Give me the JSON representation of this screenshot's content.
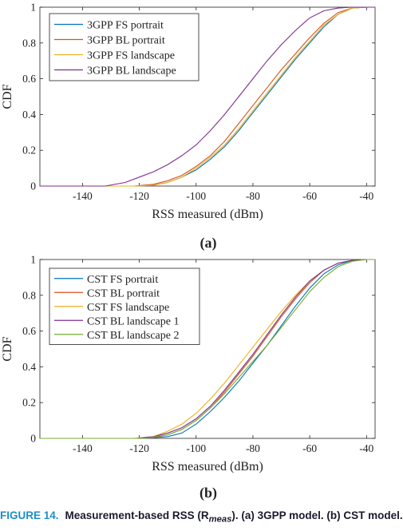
{
  "chart_data": [
    {
      "type": "line",
      "panel_label": "(a)",
      "xlabel": "RSS measured (dBm)",
      "ylabel": "CDF",
      "xlim": [
        -155,
        -37
      ],
      "ylim": [
        0,
        1
      ],
      "xticks": [
        -140,
        -120,
        -100,
        -80,
        -60,
        -40
      ],
      "xtick_labels": [
        "-140",
        "-120",
        "-100",
        "-80",
        "-60",
        "-40"
      ],
      "yticks": [
        0,
        0.2,
        0.4,
        0.6,
        0.8,
        1
      ],
      "ytick_labels": [
        "0",
        "0.2",
        "0.4",
        "0.6",
        "0.8",
        "1"
      ],
      "grid": false,
      "legend_position": "top-left",
      "series": [
        {
          "name": "3GPP FS portrait",
          "color": "#0072BD",
          "x": [
            -120,
            -115,
            -110,
            -105,
            -100,
            -95,
            -90,
            -85,
            -80,
            -75,
            -70,
            -65,
            -60,
            -55,
            -50,
            -45,
            -40
          ],
          "y": [
            0,
            0.005,
            0.02,
            0.05,
            0.09,
            0.15,
            0.22,
            0.31,
            0.41,
            0.51,
            0.61,
            0.71,
            0.8,
            0.89,
            0.96,
            0.995,
            1
          ]
        },
        {
          "name": "3GPP BL portrait",
          "color": "#D95319",
          "x": [
            -122,
            -115,
            -110,
            -105,
            -100,
            -95,
            -90,
            -85,
            -80,
            -75,
            -70,
            -65,
            -60,
            -55,
            -50,
            -45,
            -40
          ],
          "y": [
            0,
            0.01,
            0.03,
            0.06,
            0.11,
            0.17,
            0.25,
            0.35,
            0.45,
            0.55,
            0.65,
            0.74,
            0.83,
            0.91,
            0.97,
            0.995,
            1
          ]
        },
        {
          "name": "3GPP FS landscape",
          "color": "#EDB120",
          "x": [
            -120,
            -115,
            -110,
            -105,
            -100,
            -95,
            -90,
            -85,
            -80,
            -75,
            -70,
            -65,
            -60,
            -55,
            -50,
            -45,
            -40
          ],
          "y": [
            0,
            0.005,
            0.02,
            0.05,
            0.1,
            0.16,
            0.23,
            0.32,
            0.42,
            0.52,
            0.62,
            0.72,
            0.81,
            0.9,
            0.96,
            0.995,
            1
          ]
        },
        {
          "name": "3GPP BL landscape",
          "color": "#7E2F8E",
          "x": [
            -132,
            -125,
            -120,
            -115,
            -110,
            -105,
            -100,
            -95,
            -90,
            -85,
            -80,
            -75,
            -70,
            -65,
            -60,
            -55,
            -50,
            -45
          ],
          "y": [
            0,
            0.02,
            0.05,
            0.08,
            0.12,
            0.17,
            0.23,
            0.31,
            0.4,
            0.5,
            0.6,
            0.7,
            0.79,
            0.87,
            0.94,
            0.98,
            0.995,
            1
          ]
        }
      ]
    },
    {
      "type": "line",
      "panel_label": "(b)",
      "xlabel": "RSS measured (dBm)",
      "ylabel": "CDF",
      "xlim": [
        -155,
        -37
      ],
      "ylim": [
        0,
        1
      ],
      "xticks": [
        -140,
        -120,
        -100,
        -80,
        -60,
        -40
      ],
      "xtick_labels": [
        "-140",
        "-120",
        "-100",
        "-80",
        "-60",
        "-40"
      ],
      "yticks": [
        0,
        0.2,
        0.4,
        0.6,
        0.8,
        1
      ],
      "ytick_labels": [
        "0",
        "0.2",
        "0.4",
        "0.6",
        "0.8",
        "1"
      ],
      "grid": false,
      "legend_position": "top-left",
      "series": [
        {
          "name": "CST FS portrait",
          "color": "#0072BD",
          "x": [
            -118,
            -110,
            -105,
            -100,
            -95,
            -90,
            -85,
            -80,
            -75,
            -70,
            -65,
            -60,
            -55,
            -50,
            -45,
            -40
          ],
          "y": [
            0,
            0.01,
            0.03,
            0.08,
            0.15,
            0.23,
            0.32,
            0.42,
            0.52,
            0.63,
            0.74,
            0.84,
            0.92,
            0.97,
            0.995,
            1
          ]
        },
        {
          "name": "CST BL portrait",
          "color": "#D95319",
          "x": [
            -120,
            -115,
            -110,
            -105,
            -100,
            -95,
            -90,
            -85,
            -80,
            -75,
            -70,
            -65,
            -60,
            -55,
            -50,
            -45,
            -40
          ],
          "y": [
            0,
            0.005,
            0.02,
            0.05,
            0.1,
            0.17,
            0.26,
            0.36,
            0.46,
            0.57,
            0.68,
            0.78,
            0.87,
            0.94,
            0.98,
            0.995,
            1
          ]
        },
        {
          "name": "CST FS landscape",
          "color": "#EDB120",
          "x": [
            -122,
            -115,
            -110,
            -105,
            -100,
            -95,
            -90,
            -85,
            -80,
            -75,
            -70,
            -65,
            -60,
            -55,
            -50,
            -45,
            -40
          ],
          "y": [
            0,
            0.01,
            0.04,
            0.08,
            0.14,
            0.22,
            0.31,
            0.41,
            0.51,
            0.61,
            0.71,
            0.8,
            0.88,
            0.94,
            0.98,
            0.995,
            1
          ]
        },
        {
          "name": "CST BL landscape 1",
          "color": "#7E2F8E",
          "x": [
            -121,
            -115,
            -110,
            -105,
            -100,
            -95,
            -90,
            -85,
            -80,
            -75,
            -70,
            -65,
            -60,
            -55,
            -50,
            -45,
            -40
          ],
          "y": [
            0,
            0.01,
            0.03,
            0.06,
            0.11,
            0.18,
            0.27,
            0.37,
            0.47,
            0.58,
            0.69,
            0.79,
            0.88,
            0.94,
            0.98,
            0.995,
            1
          ]
        },
        {
          "name": "CST BL landscape 2",
          "color": "#77AC30",
          "x": [
            -118,
            -110,
            -105,
            -100,
            -95,
            -90,
            -85,
            -80,
            -75,
            -70,
            -65,
            -60,
            -55,
            -50,
            -45,
            -40
          ],
          "y": [
            0,
            0.02,
            0.05,
            0.1,
            0.17,
            0.25,
            0.34,
            0.43,
            0.52,
            0.62,
            0.72,
            0.82,
            0.9,
            0.96,
            0.99,
            1
          ]
        }
      ]
    }
  ],
  "caption": {
    "label": "FIGURE 14.",
    "text": "Measurement-based RSS (R",
    "sub": "meas",
    "text_after": "). (a) 3GPP model. (b) CST model."
  }
}
